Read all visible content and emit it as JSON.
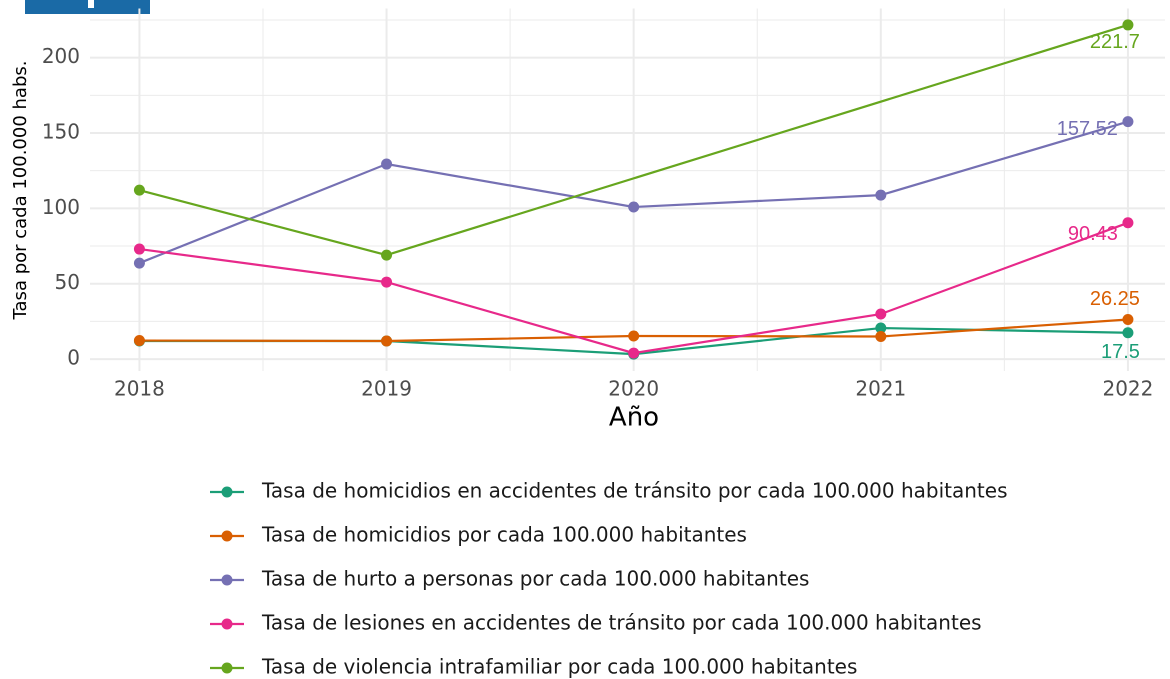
{
  "chart_data": {
    "type": "line",
    "x_label": "Año",
    "y_label": "Tasa por cada 100.000 habs.",
    "x": [
      2018,
      2019,
      2020,
      2021,
      2022
    ],
    "xlim": [
      2017.8,
      2022.15
    ],
    "xticks": [
      2018,
      2019,
      2020,
      2021,
      2022
    ],
    "ylim": [
      -7.9,
      232.6
    ],
    "yticks": [
      0,
      50,
      100,
      150,
      200
    ],
    "grid": true,
    "legend": "bottom",
    "series": [
      {
        "name": "Tasa de homicidios en accidentes de tránsito por cada 100.000 habitantes",
        "color": "#1b9e77",
        "values": [
          12,
          12,
          3.3,
          20.6,
          17.5
        ]
      },
      {
        "name": "Tasa de homicidios por cada 100.000 habitantes",
        "color": "#d95f02",
        "values": [
          12.3,
          12,
          15.3,
          15,
          26.25
        ]
      },
      {
        "name": "Tasa de hurto a personas por cada 100.000 habitantes",
        "color": "#7570b3",
        "values": [
          63.7,
          129.4,
          100.9,
          108.8,
          157.52
        ]
      },
      {
        "name": "Tasa de lesiones en accidentes de tránsito por cada 100.000 habitantes",
        "color": "#e7298a",
        "values": [
          73,
          51.1,
          4,
          29.9,
          90.43
        ]
      },
      {
        "name": "Tasa de violencia intrafamiliar por cada 100.000 habitantes",
        "color": "#66a61e",
        "x": [
          2018,
          2019,
          2022
        ],
        "values": [
          112.1,
          69,
          221.7
        ]
      }
    ]
  }
}
